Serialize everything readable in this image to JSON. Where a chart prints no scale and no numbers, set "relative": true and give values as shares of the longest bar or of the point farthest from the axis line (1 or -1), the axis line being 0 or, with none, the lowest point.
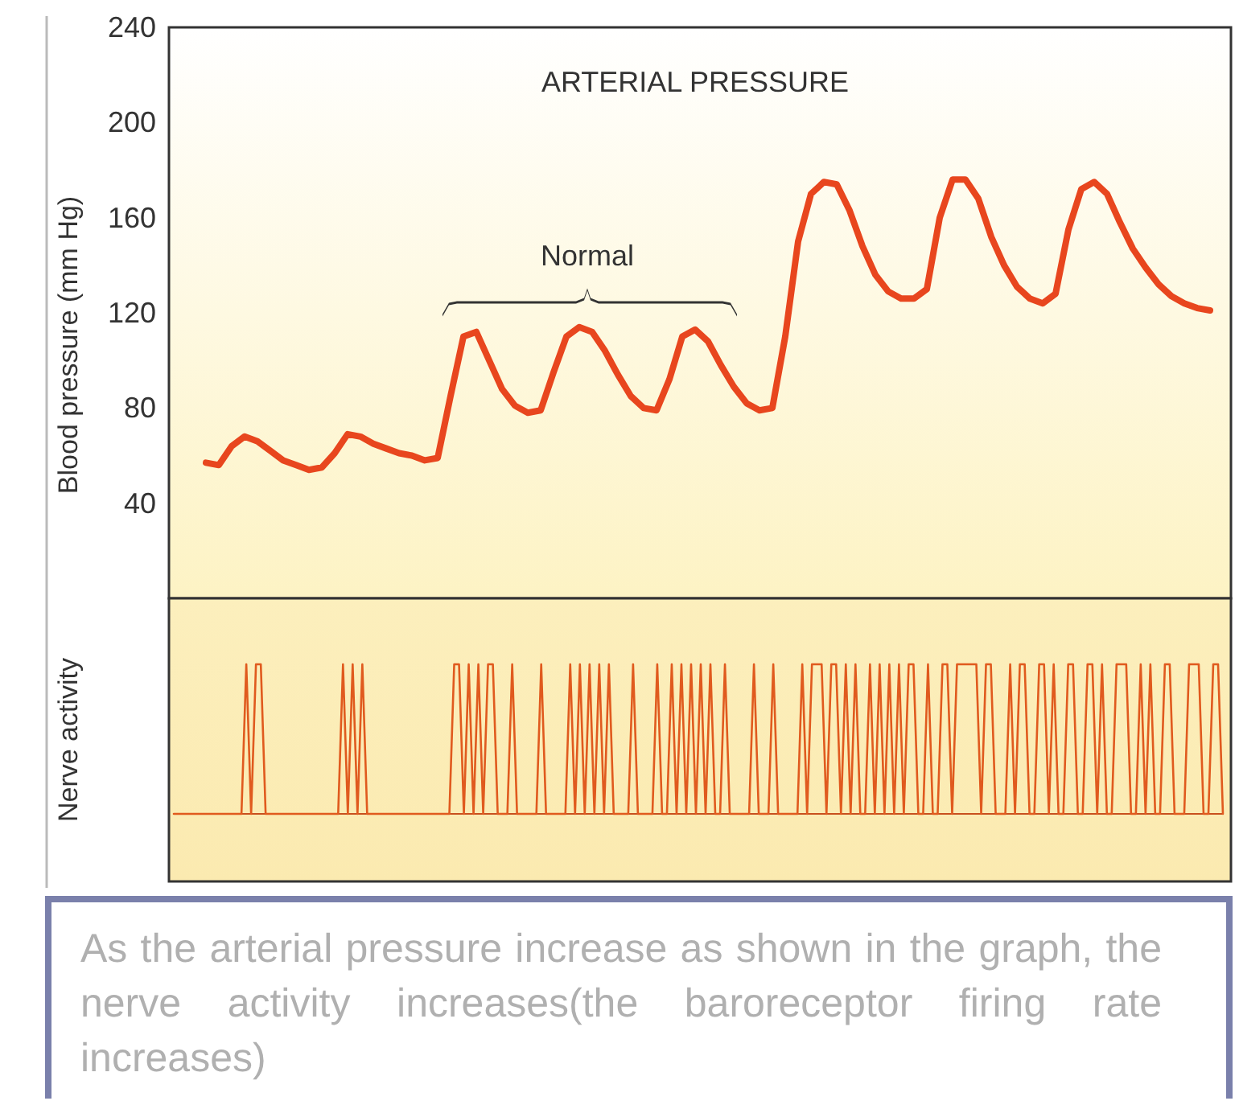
{
  "chart_data": [
    {
      "type": "line",
      "title": "ARTERIAL PRESSURE",
      "ylabel": "Blood pressure (mm Hg)",
      "ylim": [
        0,
        240
      ],
      "yticks": [
        40,
        80,
        120,
        160,
        200,
        240
      ],
      "tick_labels": "y",
      "annotations": [
        "Normal"
      ],
      "categories": [
        null,
        null,
        null,
        null,
        null,
        null,
        null,
        null,
        null,
        null,
        null,
        null,
        null,
        null,
        null,
        null,
        null,
        null,
        null,
        null,
        null,
        null,
        null,
        null,
        null,
        null,
        null,
        null,
        null,
        null,
        null,
        null,
        null,
        null,
        null,
        null,
        null,
        null,
        null,
        null,
        null,
        null,
        null,
        null,
        null,
        null,
        null,
        null,
        null,
        null,
        null,
        null,
        null,
        null,
        null,
        null,
        null,
        null,
        null,
        null,
        null,
        null,
        null,
        null,
        null,
        null,
        null,
        null,
        null,
        null,
        null,
        null,
        null,
        null,
        null,
        null,
        null,
        null,
        null
      ],
      "series": [
        {
          "color": "#e8461e",
          "values": [
            57,
            56,
            64,
            68,
            66,
            62,
            58,
            56,
            54,
            55,
            61,
            69,
            68,
            65,
            63,
            61,
            60,
            58,
            59,
            85,
            110,
            112,
            100,
            88,
            81,
            78,
            79,
            95,
            110,
            114,
            112,
            104,
            94,
            85,
            80,
            79,
            92,
            110,
            113,
            108,
            98,
            89,
            82,
            79,
            80,
            110,
            150,
            170,
            175,
            174,
            163,
            148,
            136,
            129,
            126,
            126,
            130,
            160,
            176,
            176,
            168,
            152,
            140,
            131,
            126,
            124,
            128,
            155,
            172,
            175,
            170,
            158,
            147,
            139,
            132,
            127,
            124,
            122,
            121
          ]
        }
      ]
    },
    {
      "type": "line",
      "relative": true,
      "ylabel": "Nerve activity",
      "tick_labels": false,
      "annotations": [
        "As the arterial pressure increase as shown in the graph, the nerve activity increases(the baroreceptor firing rate increases)"
      ],
      "categories": [
        null,
        null,
        null,
        null,
        null,
        null,
        null,
        null,
        null,
        null,
        null,
        null,
        null,
        null,
        null,
        null,
        null,
        null,
        null,
        null,
        null,
        null,
        null,
        null,
        null,
        null,
        null,
        null,
        null,
        null,
        null,
        null,
        null,
        null,
        null,
        null,
        null,
        null,
        null,
        null,
        null,
        null,
        null,
        null,
        null,
        null,
        null,
        null,
        null,
        null,
        null,
        null,
        null,
        null,
        null,
        null,
        null,
        null,
        null,
        null,
        null,
        null,
        null,
        null,
        null,
        null,
        null,
        null,
        null,
        null,
        null,
        null,
        null,
        null,
        null,
        null,
        null,
        null,
        null,
        null,
        null,
        null,
        null,
        null,
        null,
        null,
        null,
        null,
        null,
        null,
        null,
        null,
        null,
        null,
        null,
        null,
        null,
        null,
        null,
        null,
        null,
        null,
        null,
        null,
        null,
        null,
        null,
        null,
        null,
        null,
        null,
        null,
        null,
        null,
        null,
        null,
        null,
        null,
        null,
        null,
        null,
        null,
        null,
        null,
        null,
        null,
        null,
        null,
        null,
        null,
        null,
        null,
        null,
        null,
        null,
        null,
        null,
        null,
        null,
        null,
        null,
        null,
        null,
        null,
        null,
        null,
        null,
        null,
        null,
        null,
        null,
        null,
        null,
        null,
        null,
        null,
        null,
        null,
        null,
        null,
        null,
        null,
        null,
        null,
        null,
        null,
        null,
        null,
        null,
        null,
        null,
        null,
        null,
        null,
        null,
        null,
        null,
        null,
        null,
        null,
        null,
        null,
        null,
        null,
        null,
        null,
        null,
        null,
        null,
        null,
        null,
        null,
        null,
        null,
        null,
        null,
        null,
        null,
        null,
        null,
        null,
        null,
        null,
        null,
        null,
        null,
        null,
        null,
        null,
        null,
        null,
        null,
        null,
        null,
        null,
        null,
        null,
        null
      ],
      "series": [
        {
          "color": "#e05a1e",
          "values": [
            0,
            0,
            0,
            0,
            0,
            0,
            0,
            0,
            0,
            0,
            0,
            0,
            0,
            0,
            0,
            1,
            0,
            1,
            1,
            0,
            0,
            0,
            0,
            0,
            0,
            0,
            0,
            0,
            0,
            0,
            0,
            0,
            0,
            0,
            0,
            1,
            0,
            1,
            0,
            1,
            0,
            0,
            0,
            0,
            0,
            0,
            0,
            0,
            0,
            0,
            0,
            0,
            0,
            0,
            0,
            0,
            0,
            0,
            1,
            1,
            0,
            1,
            0,
            1,
            0,
            1,
            1,
            0,
            0,
            0,
            1,
            0,
            0,
            0,
            0,
            0,
            1,
            0,
            0,
            0,
            0,
            0,
            1,
            0,
            1,
            0,
            1,
            0,
            1,
            0,
            1,
            0,
            0,
            0,
            0,
            1,
            0,
            0,
            0,
            0,
            1,
            0,
            0,
            1,
            0,
            1,
            0,
            1,
            0,
            1,
            0,
            1,
            0,
            0,
            1,
            0,
            0,
            0,
            0,
            0,
            1,
            0,
            0,
            0,
            1,
            0,
            0,
            0,
            0,
            0,
            1,
            0,
            1,
            1,
            1,
            0,
            1,
            1,
            0,
            1,
            0,
            1,
            0,
            0,
            1,
            0,
            1,
            0,
            1,
            0,
            1,
            0,
            1,
            1,
            0,
            0,
            1,
            0,
            0,
            1,
            1,
            0,
            1,
            1,
            1,
            1,
            1,
            0,
            1,
            1,
            0,
            0,
            0,
            1,
            0,
            1,
            1,
            0,
            0,
            1,
            1,
            0,
            1,
            0,
            0,
            1,
            1,
            0,
            0,
            1,
            1,
            0,
            1,
            0,
            0,
            1,
            1,
            1,
            0,
            0,
            1,
            0,
            1,
            0,
            0,
            1,
            1,
            0,
            0,
            0,
            1,
            1,
            1,
            0,
            0,
            1,
            1,
            0
          ]
        }
      ]
    }
  ]
}
